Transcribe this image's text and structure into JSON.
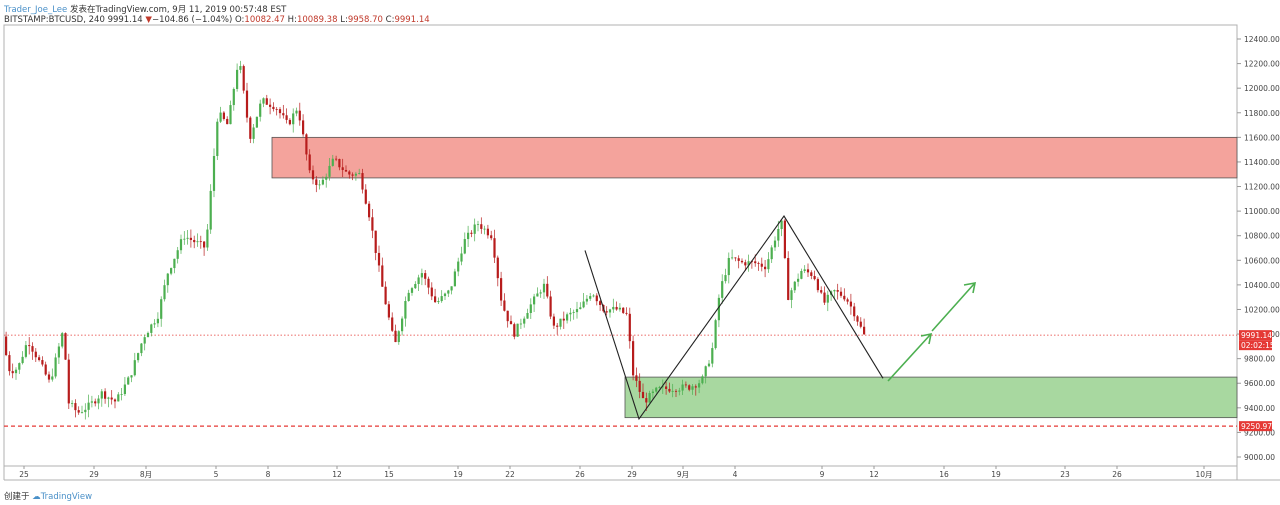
{
  "header": {
    "author": "Trader_Joe_Lee",
    "published": "发表在TradingView.com, 9月 11, 2019 00:57:48 EST",
    "symbol": "BITSTAMP:BTCUSD, 240",
    "last": "9991.14",
    "change": "−104.86 (−1.04%)",
    "o_label": "O:",
    "o": "10082.47",
    "h_label": "H:",
    "h": "10089.38",
    "l_label": "L:",
    "l": "9958.70",
    "c_label": "C:",
    "c": "9991.14"
  },
  "footer": {
    "created": "创建于",
    "brand": "TradingView"
  },
  "chart_data": {
    "type": "candlestick",
    "ylim": [
      8900,
      12500
    ],
    "y_ticks": [
      "12400.00",
      "12200.00",
      "12000.00",
      "11800.00",
      "11600.00",
      "11400.00",
      "11200.00",
      "11000.00",
      "10800.00",
      "10600.00",
      "10400.00",
      "10200.00",
      "10000.00",
      "9800.00",
      "9600.00",
      "9400.00",
      "9200.00",
      "9000.00"
    ],
    "x_ticks": [
      "25",
      "29",
      "8月",
      "5",
      "8",
      "12",
      "15",
      "19",
      "22",
      "26",
      "29",
      "9月",
      "4",
      "9",
      "12",
      "16",
      "19",
      "23",
      "26",
      "10月"
    ],
    "price_line": {
      "value": 9991.14,
      "label": "9991.14",
      "timer": "02:02:15",
      "color": "#e53935"
    },
    "support_line": {
      "value": 9250.97,
      "label": "9250.97",
      "color": "#e53935"
    },
    "zones": [
      {
        "name": "resistance",
        "from": 11270,
        "to": 11600,
        "color": "#f4a39c"
      },
      {
        "name": "support",
        "from": 9320,
        "to": 9650,
        "color": "#a8d8a0"
      }
    ],
    "pattern_points": [
      [
        10680,
        9310,
        10960,
        9640
      ]
    ],
    "projection": {
      "color": "#4caf50"
    },
    "candle_colors": {
      "up": "#4caf50",
      "down": "#b71c1c"
    }
  }
}
